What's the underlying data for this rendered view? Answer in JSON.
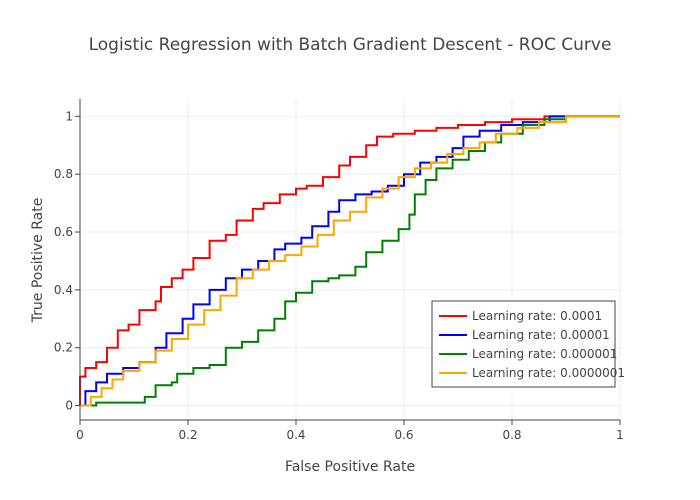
{
  "chart_data": {
    "type": "line",
    "title": "Logistic Regression with Batch Gradient Descent - ROC Curve",
    "xlabel": "False Positive Rate",
    "ylabel": "True Positive Rate",
    "xlim": [
      0,
      1
    ],
    "ylim": [
      -0.05,
      1.06
    ],
    "x_ticks": [
      0,
      0.2,
      0.4,
      0.6,
      0.8,
      1
    ],
    "x_tick_labels": [
      "0",
      "0.2",
      "0.4",
      "0.6",
      "0.8",
      "1"
    ],
    "y_ticks": [
      0,
      0.2,
      0.4,
      0.6,
      0.8,
      1
    ],
    "y_tick_labels": [
      "0",
      "0.2",
      "0.4",
      "0.6",
      "0.8",
      "1"
    ],
    "grid": true,
    "legend_position": "bottom-right",
    "series": [
      {
        "name": "Learning rate: 0.0001",
        "color": "#ff0000",
        "points": [
          [
            0,
            0
          ],
          [
            0,
            0.1
          ],
          [
            0.01,
            0.13
          ],
          [
            0.03,
            0.15
          ],
          [
            0.05,
            0.2
          ],
          [
            0.07,
            0.26
          ],
          [
            0.09,
            0.28
          ],
          [
            0.11,
            0.33
          ],
          [
            0.14,
            0.36
          ],
          [
            0.15,
            0.41
          ],
          [
            0.17,
            0.44
          ],
          [
            0.19,
            0.47
          ],
          [
            0.21,
            0.51
          ],
          [
            0.24,
            0.57
          ],
          [
            0.27,
            0.59
          ],
          [
            0.29,
            0.64
          ],
          [
            0.32,
            0.68
          ],
          [
            0.34,
            0.7
          ],
          [
            0.37,
            0.73
          ],
          [
            0.4,
            0.75
          ],
          [
            0.42,
            0.76
          ],
          [
            0.45,
            0.79
          ],
          [
            0.48,
            0.83
          ],
          [
            0.5,
            0.86
          ],
          [
            0.53,
            0.9
          ],
          [
            0.55,
            0.93
          ],
          [
            0.58,
            0.94
          ],
          [
            0.62,
            0.95
          ],
          [
            0.66,
            0.96
          ],
          [
            0.7,
            0.97
          ],
          [
            0.75,
            0.98
          ],
          [
            0.8,
            0.99
          ],
          [
            0.86,
            1
          ],
          [
            0.9,
            1
          ],
          [
            1,
            1
          ]
        ]
      },
      {
        "name": "Learning rate: 0.00001",
        "color": "#0000ff",
        "points": [
          [
            0,
            0
          ],
          [
            0.01,
            0.05
          ],
          [
            0.03,
            0.08
          ],
          [
            0.05,
            0.11
          ],
          [
            0.08,
            0.13
          ],
          [
            0.11,
            0.15
          ],
          [
            0.14,
            0.2
          ],
          [
            0.16,
            0.25
          ],
          [
            0.19,
            0.3
          ],
          [
            0.21,
            0.35
          ],
          [
            0.24,
            0.4
          ],
          [
            0.27,
            0.44
          ],
          [
            0.3,
            0.47
          ],
          [
            0.33,
            0.5
          ],
          [
            0.36,
            0.54
          ],
          [
            0.38,
            0.56
          ],
          [
            0.41,
            0.58
          ],
          [
            0.43,
            0.62
          ],
          [
            0.46,
            0.67
          ],
          [
            0.48,
            0.71
          ],
          [
            0.51,
            0.73
          ],
          [
            0.54,
            0.74
          ],
          [
            0.57,
            0.76
          ],
          [
            0.6,
            0.8
          ],
          [
            0.63,
            0.84
          ],
          [
            0.66,
            0.86
          ],
          [
            0.69,
            0.89
          ],
          [
            0.71,
            0.93
          ],
          [
            0.74,
            0.95
          ],
          [
            0.78,
            0.97
          ],
          [
            0.82,
            0.98
          ],
          [
            0.87,
            1
          ],
          [
            1,
            1
          ]
        ]
      },
      {
        "name": "Learning rate: 0.000001",
        "color": "#008000",
        "points": [
          [
            0,
            0
          ],
          [
            0.03,
            0.01
          ],
          [
            0.06,
            0.01
          ],
          [
            0.11,
            0.01
          ],
          [
            0.12,
            0.03
          ],
          [
            0.14,
            0.07
          ],
          [
            0.17,
            0.08
          ],
          [
            0.18,
            0.11
          ],
          [
            0.21,
            0.13
          ],
          [
            0.24,
            0.14
          ],
          [
            0.27,
            0.2
          ],
          [
            0.3,
            0.22
          ],
          [
            0.33,
            0.26
          ],
          [
            0.36,
            0.3
          ],
          [
            0.38,
            0.36
          ],
          [
            0.4,
            0.39
          ],
          [
            0.43,
            0.43
          ],
          [
            0.46,
            0.44
          ],
          [
            0.48,
            0.45
          ],
          [
            0.51,
            0.48
          ],
          [
            0.53,
            0.53
          ],
          [
            0.56,
            0.57
          ],
          [
            0.59,
            0.61
          ],
          [
            0.61,
            0.66
          ],
          [
            0.62,
            0.73
          ],
          [
            0.64,
            0.78
          ],
          [
            0.66,
            0.82
          ],
          [
            0.69,
            0.85
          ],
          [
            0.72,
            0.88
          ],
          [
            0.75,
            0.91
          ],
          [
            0.78,
            0.94
          ],
          [
            0.82,
            0.97
          ],
          [
            0.86,
            0.99
          ],
          [
            0.9,
            1
          ],
          [
            1,
            1
          ]
        ]
      },
      {
        "name": "Learning rate: 0.0000001",
        "color": "#ffa500",
        "points": [
          [
            0,
            0
          ],
          [
            0.02,
            0.03
          ],
          [
            0.04,
            0.06
          ],
          [
            0.06,
            0.09
          ],
          [
            0.08,
            0.12
          ],
          [
            0.11,
            0.15
          ],
          [
            0.14,
            0.19
          ],
          [
            0.17,
            0.23
          ],
          [
            0.2,
            0.28
          ],
          [
            0.23,
            0.33
          ],
          [
            0.26,
            0.38
          ],
          [
            0.29,
            0.44
          ],
          [
            0.32,
            0.47
          ],
          [
            0.35,
            0.5
          ],
          [
            0.38,
            0.52
          ],
          [
            0.41,
            0.55
          ],
          [
            0.44,
            0.59
          ],
          [
            0.47,
            0.64
          ],
          [
            0.5,
            0.67
          ],
          [
            0.53,
            0.72
          ],
          [
            0.56,
            0.75
          ],
          [
            0.59,
            0.79
          ],
          [
            0.62,
            0.82
          ],
          [
            0.65,
            0.84
          ],
          [
            0.68,
            0.87
          ],
          [
            0.71,
            0.89
          ],
          [
            0.74,
            0.91
          ],
          [
            0.77,
            0.94
          ],
          [
            0.81,
            0.96
          ],
          [
            0.85,
            0.98
          ],
          [
            0.9,
            1
          ],
          [
            1,
            1
          ]
        ]
      }
    ]
  }
}
